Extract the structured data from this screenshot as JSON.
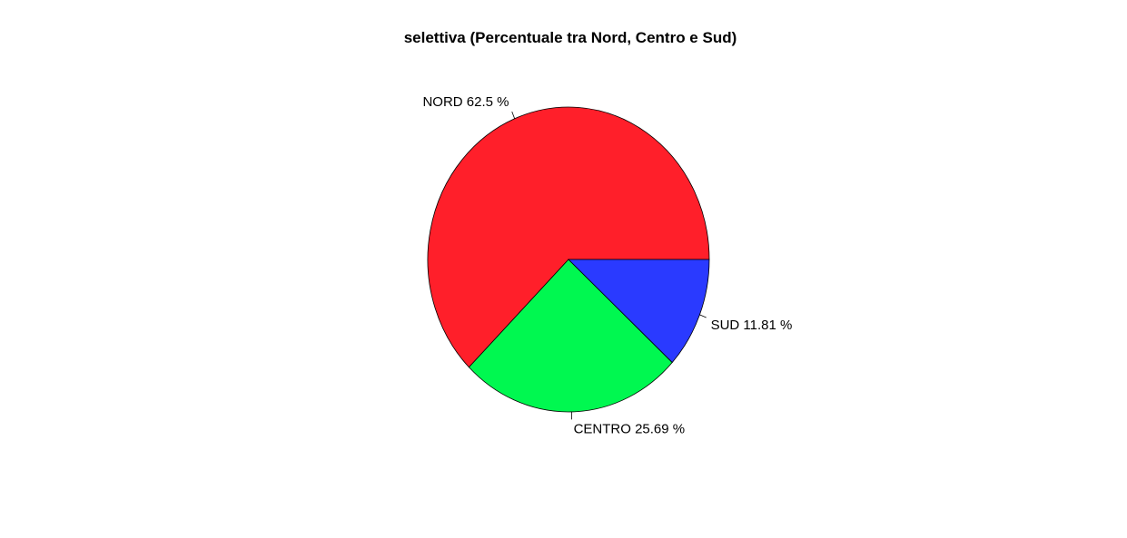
{
  "chart_data": {
    "type": "pie",
    "title": "selettiva  (Percentuale tra Nord, Centro e Sud)",
    "start_angle_deg": 0,
    "direction": "counterclockwise",
    "slices": [
      {
        "label": "NORD 62.5 %",
        "category": "NORD",
        "value": 62.5,
        "color": "#FF1F2A"
      },
      {
        "label": "CENTRO 25.69 %",
        "category": "CENTRO",
        "value": 25.69,
        "color": "#00F850"
      },
      {
        "label": "SUD 11.81 %",
        "category": "SUD",
        "value": 11.81,
        "color": "#2A3AFF"
      }
    ]
  }
}
